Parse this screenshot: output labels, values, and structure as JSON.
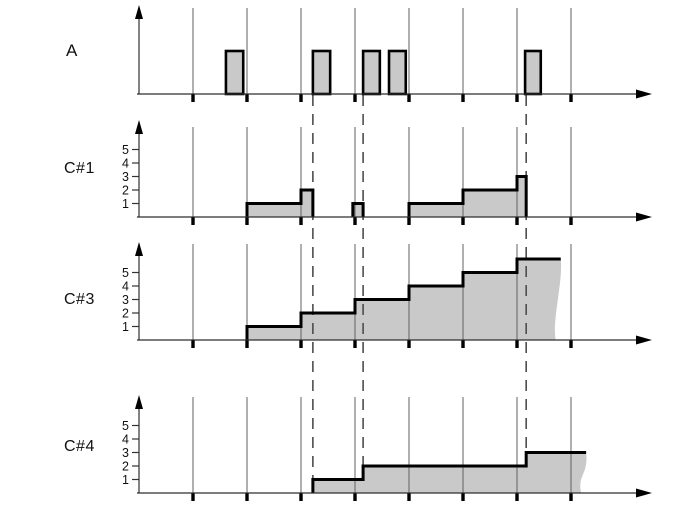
{
  "figure_kind": "timing-diagram",
  "colors": {
    "background": "#ffffff",
    "fill_gray": "#c9c9c9",
    "signal_line": "#000000",
    "gridline": "#616161",
    "axis": "#2e2e2e",
    "dashed_marker": "#4d4d4d",
    "tick": "#000000",
    "text": "#111111"
  },
  "chart_data": {
    "type": "timing",
    "x_axis": {
      "tick_positions": [
        1,
        2,
        3,
        4,
        5,
        6,
        7,
        8
      ],
      "tick_labels": [],
      "gridlines": true,
      "arrow": true
    },
    "event_markers_t": [
      3.22,
      4.15,
      7.17
    ],
    "panels": [
      {
        "label": "A",
        "type": "pulses",
        "y_tick_labels": [],
        "pulses": [
          [
            1.61,
            1.93
          ],
          [
            3.22,
            3.54
          ],
          [
            4.15,
            4.46
          ],
          [
            4.63,
            4.94
          ],
          [
            7.15,
            7.44
          ]
        ]
      },
      {
        "label": "C#1",
        "type": "step",
        "y_tick_labels": [
          "1",
          "2",
          "3",
          "4",
          "5"
        ],
        "segments": [
          [
            2,
            3,
            1
          ],
          [
            3,
            3.22,
            2
          ],
          [
            3.96,
            4.15,
            1
          ],
          [
            5,
            6,
            1
          ],
          [
            6,
            7,
            2
          ],
          [
            7,
            7.17,
            3
          ]
        ],
        "torn_edge": false
      },
      {
        "label": "C#3",
        "type": "step",
        "y_tick_labels": [
          "1",
          "2",
          "3",
          "4",
          "5"
        ],
        "segments": [
          [
            2,
            3,
            1
          ],
          [
            3,
            4,
            2
          ],
          [
            4,
            5,
            3
          ],
          [
            5,
            6,
            4
          ],
          [
            6,
            7,
            5
          ],
          [
            7,
            7.81,
            6
          ]
        ],
        "torn_edge": true
      },
      {
        "label": "C#4",
        "type": "step",
        "y_tick_labels": [
          "1",
          "2",
          "3",
          "4",
          "5"
        ],
        "segments": [
          [
            3.22,
            4.15,
            1
          ],
          [
            4.15,
            7.17,
            2
          ],
          [
            7.17,
            8.28,
            3
          ]
        ],
        "torn_edge": true
      }
    ]
  }
}
